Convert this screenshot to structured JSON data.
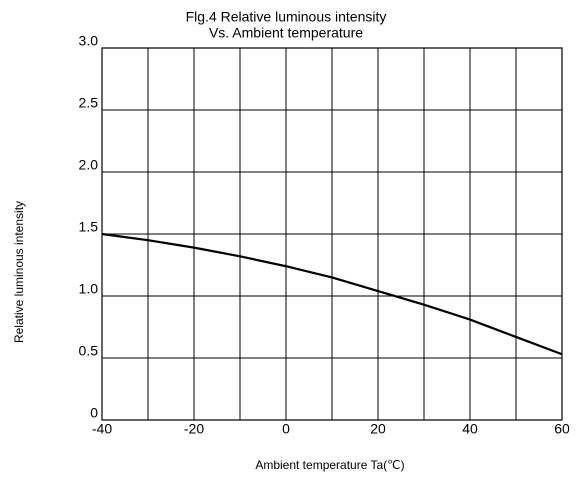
{
  "chart_data": {
    "type": "line",
    "title": [
      "Flg.4 Relative luminous intensity",
      "Vs. Ambient temperature"
    ],
    "xlabel": "Ambient temperature Ta(℃)",
    "ylabel": "Relative luminous intensity",
    "x": [
      -40,
      -30,
      -20,
      -10,
      0,
      10,
      20,
      30,
      40,
      50,
      60
    ],
    "series": [
      {
        "name": "Relative luminous intensity",
        "color": "#000000",
        "values": [
          1.5,
          1.45,
          1.39,
          1.32,
          1.24,
          1.15,
          1.04,
          0.93,
          0.81,
          0.67,
          0.53
        ]
      }
    ],
    "xlim": [
      -40,
      60
    ],
    "xticks": [
      -40,
      -20,
      0,
      20,
      40,
      60
    ],
    "xminor": [
      -30,
      -10,
      10,
      30,
      50
    ],
    "ylim": [
      0,
      3
    ],
    "yticks": [
      0,
      0.5,
      {
        "value": 1,
        "label": "1.0"
      },
      1.5,
      {
        "value": 2,
        "label": "2.0"
      },
      2.5,
      {
        "value": 3,
        "label": "3.0"
      }
    ],
    "grid": true
  }
}
